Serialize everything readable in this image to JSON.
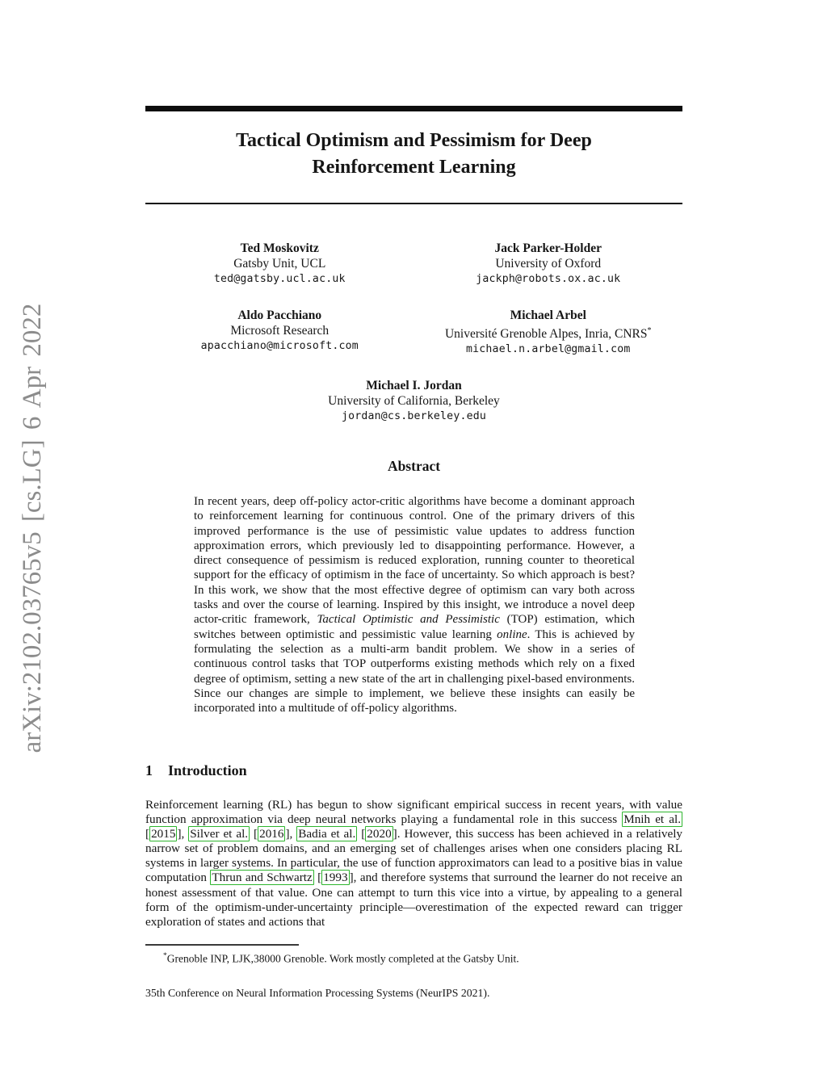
{
  "sidebar": {
    "arxiv_label": "arXiv:2102.03765v5  [cs.LG]  6 Apr 2022"
  },
  "title": {
    "lines": [
      "Tactical Optimism and Pessimism for Deep",
      "Reinforcement Learning"
    ]
  },
  "authors": [
    {
      "name": "Ted Moskovitz",
      "affiliation": "Gatsby Unit, UCL",
      "email": "ted@gatsby.ucl.ac.uk"
    },
    {
      "name": "Jack Parker-Holder",
      "affiliation": "University of Oxford",
      "email": "jackph@robots.ox.ac.uk"
    },
    {
      "name": "Aldo Pacchiano",
      "affiliation": "Microsoft Research",
      "email": "apacchiano@microsoft.com"
    },
    {
      "name": "Michael Arbel",
      "affiliation": "Université Grenoble Alpes, Inria, CNRS",
      "affiliation_sup": "*",
      "email": "michael.n.arbel@gmail.com"
    },
    {
      "name": "Michael I. Jordan",
      "affiliation": "University of California, Berkeley",
      "email": "jordan@cs.berkeley.edu"
    }
  ],
  "abstract": {
    "heading": "Abstract",
    "segments": [
      {
        "style": "normal",
        "text": "In recent years, deep off-policy actor-critic algorithms have become a dominant approach to reinforcement learning for continuous control. One of the primary drivers of this improved performance is the use of pessimistic value updates to address function approximation errors, which previously led to disappointing performance. However, a direct consequence of pessimism is reduced exploration, running counter to theoretical support for the efficacy of optimism in the face of uncertainty. So which approach is best? In this work, we show that the most effective degree of optimism can vary both across tasks and over the course of learning. Inspired by this insight, we introduce a novel deep actor-critic framework, "
      },
      {
        "style": "italic",
        "text": "Tactical Optimistic and Pessimistic"
      },
      {
        "style": "normal",
        "text": " (TOP) estimation, which switches between optimistic and pessimistic value learning "
      },
      {
        "style": "italic",
        "text": "online"
      },
      {
        "style": "normal",
        "text": ". This is achieved by formulating the selection as a multi-arm bandit problem. We show in a series of continuous control tasks that TOP outperforms existing methods which rely on a fixed degree of optimism, setting a new state of the art in challenging pixel-based environments. Since our changes are simple to implement, we believe these insights can easily be incorporated into a multitude of off-policy algorithms."
      }
    ]
  },
  "introduction": {
    "number": "1",
    "heading": "Introduction",
    "segments": [
      {
        "style": "normal",
        "text": "Reinforcement learning (RL) has begun to show significant empirical success in recent years, with value function approximation via deep neural networks playing a fundamental role in this success "
      },
      {
        "style": "cite",
        "text": "Mnih et al."
      },
      {
        "style": "normal",
        "text": " ["
      },
      {
        "style": "cite",
        "text": "2015"
      },
      {
        "style": "normal",
        "text": "], "
      },
      {
        "style": "cite",
        "text": "Silver et al."
      },
      {
        "style": "normal",
        "text": " ["
      },
      {
        "style": "cite",
        "text": "2016"
      },
      {
        "style": "normal",
        "text": "], "
      },
      {
        "style": "cite",
        "text": "Badia et al."
      },
      {
        "style": "normal",
        "text": " ["
      },
      {
        "style": "cite",
        "text": "2020"
      },
      {
        "style": "normal",
        "text": "]. However, this success has been achieved in a relatively narrow set of problem domains, and an emerging set of challenges arises when one considers placing RL systems in larger systems. In particular, the use of function approximators can lead to a positive bias in value computation "
      },
      {
        "style": "cite",
        "text": "Thrun and Schwartz"
      },
      {
        "style": "normal",
        "text": " ["
      },
      {
        "style": "cite",
        "text": "1993"
      },
      {
        "style": "normal",
        "text": "], and therefore systems that surround the learner do not receive an honest assessment of that value. One can attempt to turn this vice into a virtue, by appealing to a general form of the optimism-under-uncertainty principle—overestimation of the expected reward can trigger exploration of states and actions that"
      }
    ]
  },
  "footnote": {
    "marker": "*",
    "text": "Grenoble INP, LJK,38000 Grenoble. Work mostly completed at the Gatsby Unit."
  },
  "footer": {
    "text": "35th Conference on Neural Information Processing Systems (NeurIPS 2021)."
  },
  "colors": {
    "citation_box_green": "#2db52d",
    "watermark_gray": "#8c8c8c",
    "rule_black": "#0d0d0d"
  }
}
